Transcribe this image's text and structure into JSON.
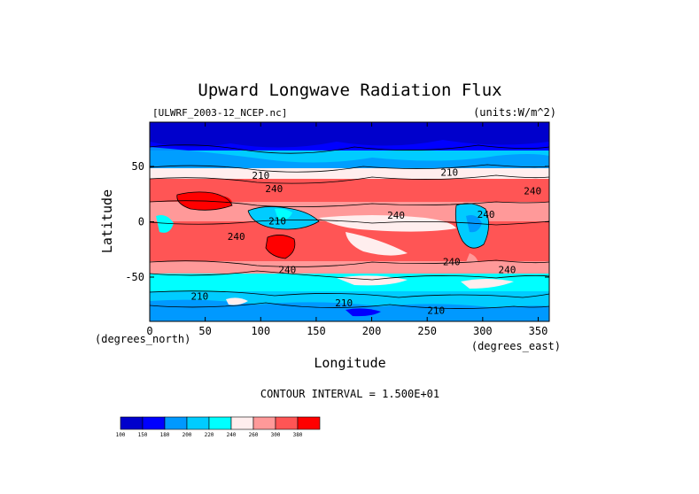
{
  "chart_data": {
    "type": "heatmap",
    "title": "Upward Longwave Radiation Flux",
    "source_label": "[ULWRF_2003-12_NCEP.nc]",
    "units_label": "(units:W/m^2)",
    "xlabel": "Longitude",
    "ylabel": "Latitude",
    "x_unit_label": "(degrees_east)",
    "y_unit_label": "(degrees_north)",
    "xlim": [
      0,
      360
    ],
    "ylim": [
      -90,
      90
    ],
    "x_ticks": [
      "0",
      "50",
      "100",
      "150",
      "200",
      "250",
      "300",
      "350"
    ],
    "y_ticks": [
      "50",
      "0",
      "-50"
    ],
    "contour_interval_text": "CONTOUR INTERVAL = 1.500E+01",
    "contour_labels": [
      {
        "text": "210",
        "lon": 100,
        "lat": 42
      },
      {
        "text": "210",
        "lon": 270,
        "lat": 45
      },
      {
        "text": "240",
        "lon": 112,
        "lat": 30
      },
      {
        "text": "240",
        "lon": 345,
        "lat": 28
      },
      {
        "text": "240",
        "lon": 222,
        "lat": 6
      },
      {
        "text": "240",
        "lon": 303,
        "lat": 7
      },
      {
        "text": "240",
        "lon": 78,
        "lat": -13
      },
      {
        "text": "210",
        "lon": 115,
        "lat": 1
      },
      {
        "text": "240",
        "lon": 124,
        "lat": -43
      },
      {
        "text": "240",
        "lon": 272,
        "lat": -36
      },
      {
        "text": "240",
        "lon": 322,
        "lat": -43
      },
      {
        "text": "210",
        "lon": 45,
        "lat": -67
      },
      {
        "text": "210",
        "lon": 175,
        "lat": -73
      },
      {
        "text": "210",
        "lon": 258,
        "lat": -80
      }
    ],
    "colorbar": {
      "labels": [
        "100",
        "150",
        "180",
        "200",
        "220",
        "240",
        "260",
        "300",
        "380"
      ],
      "colors": [
        "#0000cc",
        "#0000ff",
        "#0099ff",
        "#00ccff",
        "#00ffff",
        "#ffeeee",
        "#ff9999",
        "#ff5555",
        "#ff0000"
      ]
    },
    "grid": false
  }
}
